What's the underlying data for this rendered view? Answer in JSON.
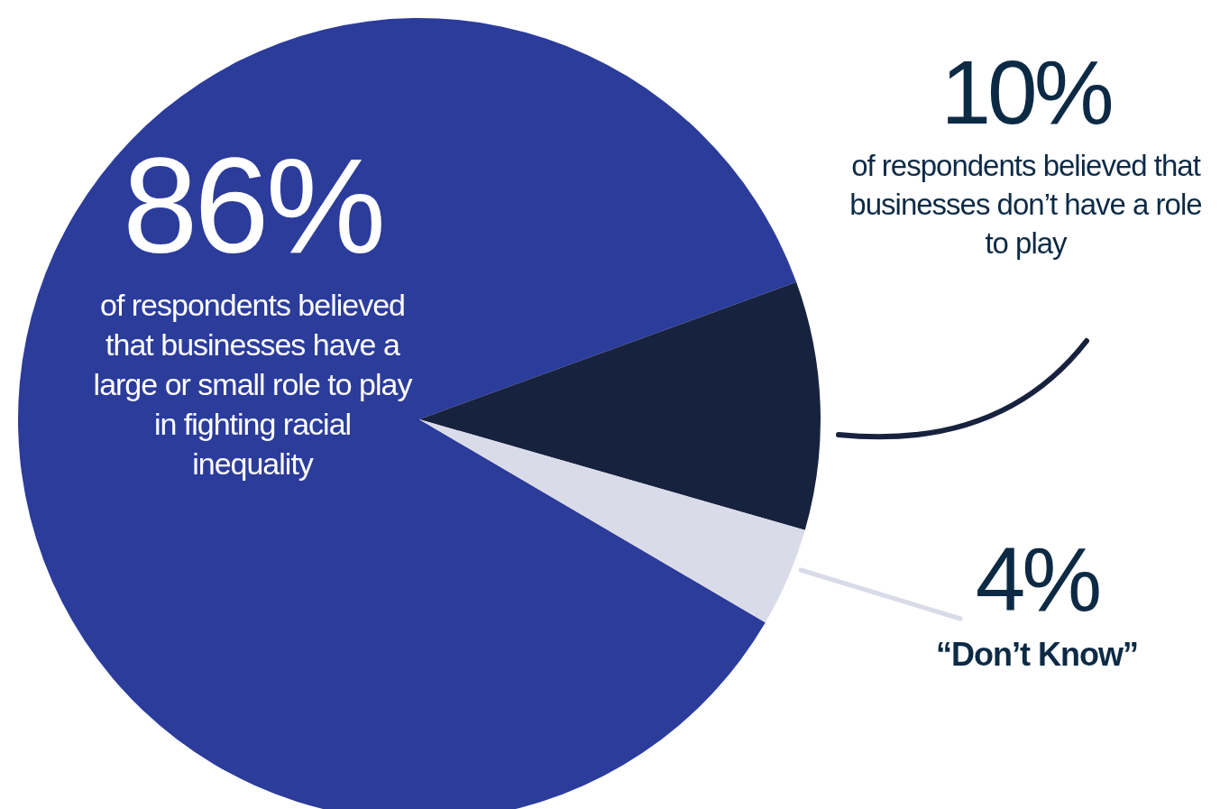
{
  "chart_data": {
    "type": "pie",
    "categories": [
      "of respondents believed that businesses have a large or small role to play in fighting racial inequality",
      "of respondents believed that businesses don’t have a role to play",
      "“Don’t Know”"
    ],
    "values": [
      86,
      10,
      4
    ],
    "value_labels": [
      "86%",
      "10%",
      "4%"
    ],
    "colors": [
      "#2b3c9b",
      "#17223e",
      "#d9dbe8"
    ]
  }
}
